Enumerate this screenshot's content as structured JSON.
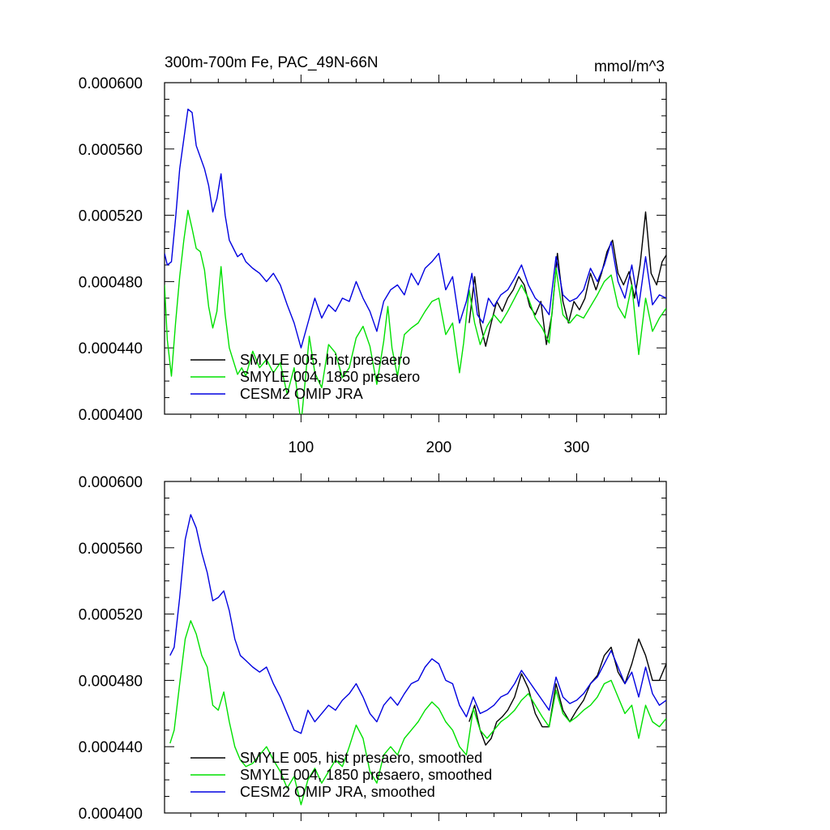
{
  "chart_data": [
    {
      "type": "line",
      "title": "300m-700m Fe, PAC_49N-66N",
      "units": "mmol/m^3",
      "xlim": [
        1,
        365
      ],
      "ylim": [
        0.0004,
        0.0006
      ],
      "x_ticks": [
        100,
        200,
        300
      ],
      "x_tick_labels": [
        "100",
        "200",
        "300"
      ],
      "y_ticks": [
        0.0004,
        0.00044,
        0.00048,
        0.00052,
        0.00056,
        0.0006
      ],
      "y_tick_labels": [
        "0.000400",
        "0.000440",
        "0.000480",
        "0.000520",
        "0.000560",
        "0.000600"
      ],
      "legend_position": "bottom-left",
      "series": [
        {
          "name": "SMYLE 005, hist presaero",
          "color": "#000000",
          "x": [
            222,
            226,
            230,
            234,
            238,
            242,
            246,
            250,
            254,
            258,
            262,
            266,
            270,
            274,
            278,
            282,
            286,
            290,
            294,
            298,
            302,
            306,
            310,
            314,
            318,
            322,
            326,
            330,
            334,
            338,
            342,
            346,
            350,
            354,
            358,
            362,
            365
          ],
          "values": [
            0.000455,
            0.000483,
            0.000455,
            0.000441,
            0.000455,
            0.000468,
            0.000462,
            0.00047,
            0.000475,
            0.000483,
            0.000478,
            0.000465,
            0.00046,
            0.000468,
            0.000442,
            0.00046,
            0.000497,
            0.000468,
            0.000455,
            0.000468,
            0.000463,
            0.00047,
            0.000485,
            0.000475,
            0.000485,
            0.000498,
            0.000505,
            0.000485,
            0.000478,
            0.000486,
            0.00047,
            0.00049,
            0.000522,
            0.000485,
            0.000478,
            0.000492,
            0.000496
          ]
        },
        {
          "name": "SMYLE 004, 1850 presaero",
          "color": "#00e000",
          "x": [
            1,
            3,
            6,
            9,
            12,
            15,
            18,
            21,
            24,
            27,
            30,
            33,
            36,
            39,
            42,
            45,
            48,
            51,
            54,
            57,
            60,
            65,
            70,
            75,
            80,
            85,
            90,
            95,
            100,
            103,
            106,
            110,
            115,
            120,
            125,
            130,
            135,
            140,
            145,
            150,
            155,
            160,
            163,
            166,
            170,
            175,
            180,
            185,
            190,
            195,
            200,
            205,
            210,
            215,
            218,
            222,
            226,
            230,
            235,
            240,
            245,
            250,
            255,
            260,
            265,
            270,
            275,
            280,
            285,
            290,
            295,
            300,
            305,
            310,
            315,
            320,
            325,
            330,
            335,
            340,
            345,
            350,
            355,
            360,
            365
          ],
          "values": [
            0.000478,
            0.000445,
            0.000423,
            0.000455,
            0.000483,
            0.000505,
            0.000523,
            0.000512,
            0.0005,
            0.000498,
            0.000487,
            0.000465,
            0.000452,
            0.000462,
            0.000489,
            0.00046,
            0.00044,
            0.000432,
            0.000424,
            0.000428,
            0.000423,
            0.000438,
            0.000428,
            0.000433,
            0.000425,
            0.000431,
            0.000412,
            0.000428,
            0.000394,
            0.00042,
            0.000447,
            0.000425,
            0.000416,
            0.000442,
            0.000437,
            0.000422,
            0.000428,
            0.000446,
            0.000453,
            0.000441,
            0.000418,
            0.000444,
            0.000465,
            0.00044,
            0.000423,
            0.000448,
            0.000452,
            0.000455,
            0.000462,
            0.000468,
            0.00047,
            0.000448,
            0.000455,
            0.000425,
            0.000443,
            0.000475,
            0.000455,
            0.000442,
            0.000453,
            0.00046,
            0.000455,
            0.000462,
            0.00047,
            0.000478,
            0.00047,
            0.000458,
            0.000452,
            0.000443,
            0.000488,
            0.00046,
            0.000455,
            0.00046,
            0.000458,
            0.000465,
            0.000472,
            0.00048,
            0.000484,
            0.000465,
            0.000458,
            0.000478,
            0.000436,
            0.00047,
            0.00045,
            0.000458,
            0.000464
          ]
        },
        {
          "name": "CESM2 OMIP JRA",
          "color": "#0000e0",
          "x": [
            1,
            3,
            6,
            9,
            12,
            15,
            18,
            21,
            24,
            27,
            30,
            33,
            36,
            39,
            42,
            45,
            48,
            51,
            54,
            57,
            60,
            65,
            70,
            75,
            80,
            85,
            90,
            95,
            100,
            105,
            110,
            115,
            120,
            125,
            130,
            135,
            140,
            145,
            150,
            155,
            160,
            165,
            170,
            175,
            180,
            185,
            190,
            195,
            200,
            205,
            210,
            215,
            220,
            224,
            228,
            232,
            236,
            240,
            245,
            250,
            255,
            260,
            265,
            270,
            275,
            280,
            285,
            290,
            295,
            300,
            305,
            310,
            315,
            320,
            325,
            330,
            335,
            340,
            345,
            350,
            355,
            360,
            365
          ],
          "values": [
            0.000497,
            0.00049,
            0.000492,
            0.000518,
            0.000548,
            0.000566,
            0.000584,
            0.000582,
            0.000562,
            0.000555,
            0.000548,
            0.000538,
            0.000522,
            0.00053,
            0.000545,
            0.00052,
            0.000505,
            0.0005,
            0.000495,
            0.000497,
            0.000492,
            0.000488,
            0.000485,
            0.00048,
            0.000485,
            0.000478,
            0.000466,
            0.000455,
            0.00044,
            0.000455,
            0.00047,
            0.000458,
            0.000466,
            0.000462,
            0.00047,
            0.000468,
            0.00048,
            0.00047,
            0.000462,
            0.00045,
            0.000468,
            0.000475,
            0.000478,
            0.000472,
            0.000485,
            0.000478,
            0.000488,
            0.000492,
            0.000497,
            0.000475,
            0.000483,
            0.000455,
            0.000468,
            0.000485,
            0.00046,
            0.000455,
            0.00047,
            0.000465,
            0.000472,
            0.000475,
            0.000482,
            0.00049,
            0.000478,
            0.00047,
            0.000466,
            0.00046,
            0.000495,
            0.000472,
            0.000468,
            0.00047,
            0.000475,
            0.000488,
            0.00048,
            0.00049,
            0.000504,
            0.00048,
            0.00047,
            0.00049,
            0.000465,
            0.000495,
            0.000466,
            0.000472,
            0.00047
          ]
        }
      ]
    },
    {
      "type": "line",
      "title": "",
      "xlim": [
        1,
        365
      ],
      "ylim": [
        0.0004,
        0.0006
      ],
      "x_ticks": [
        100,
        200,
        300
      ],
      "y_ticks": [
        0.0004,
        0.00044,
        0.00048,
        0.00052,
        0.00056,
        0.0006
      ],
      "y_tick_labels": [
        "0.000400",
        "0.000440",
        "0.000480",
        "0.000520",
        "0.000560",
        "0.000600"
      ],
      "legend_position": "bottom-left",
      "series": [
        {
          "name": "SMYLE 005, hist presaero, smoothed",
          "color": "#000000",
          "x": [
            222,
            226,
            230,
            234,
            238,
            242,
            246,
            250,
            255,
            260,
            265,
            270,
            275,
            280,
            285,
            290,
            295,
            300,
            305,
            310,
            315,
            320,
            325,
            330,
            335,
            340,
            345,
            350,
            355,
            360,
            365
          ],
          "values": [
            0.000455,
            0.000465,
            0.00045,
            0.000441,
            0.000445,
            0.000455,
            0.000458,
            0.000462,
            0.00047,
            0.000484,
            0.000475,
            0.00046,
            0.000452,
            0.000452,
            0.000478,
            0.000462,
            0.000455,
            0.000462,
            0.000468,
            0.000478,
            0.000483,
            0.000495,
            0.0005,
            0.000485,
            0.000478,
            0.00049,
            0.000505,
            0.000495,
            0.00048,
            0.00048,
            0.00049
          ]
        },
        {
          "name": "SMYLE 004, 1850 presaero, smoothed",
          "color": "#00e000",
          "x": [
            5,
            8,
            12,
            16,
            20,
            24,
            28,
            32,
            36,
            40,
            44,
            48,
            52,
            56,
            60,
            65,
            70,
            75,
            80,
            85,
            90,
            95,
            100,
            105,
            110,
            115,
            120,
            125,
            130,
            135,
            140,
            145,
            150,
            155,
            160,
            165,
            170,
            175,
            180,
            185,
            190,
            195,
            200,
            205,
            210,
            215,
            220,
            225,
            230,
            235,
            240,
            245,
            250,
            255,
            260,
            265,
            270,
            275,
            280,
            285,
            290,
            295,
            300,
            305,
            310,
            315,
            320,
            325,
            330,
            335,
            340,
            345,
            350,
            355,
            360,
            365
          ],
          "values": [
            0.000442,
            0.00045,
            0.000478,
            0.000505,
            0.000516,
            0.000508,
            0.000495,
            0.000488,
            0.000465,
            0.000462,
            0.000473,
            0.000455,
            0.00044,
            0.000432,
            0.000428,
            0.00043,
            0.000435,
            0.00044,
            0.000432,
            0.000425,
            0.000415,
            0.000422,
            0.000405,
            0.00042,
            0.000427,
            0.000418,
            0.000425,
            0.000432,
            0.000428,
            0.00044,
            0.000453,
            0.000445,
            0.000425,
            0.000418,
            0.000435,
            0.00044,
            0.000435,
            0.000445,
            0.00045,
            0.000455,
            0.000462,
            0.000467,
            0.000463,
            0.000455,
            0.00045,
            0.00044,
            0.000435,
            0.000463,
            0.00045,
            0.000445,
            0.00045,
            0.000455,
            0.000458,
            0.000462,
            0.000468,
            0.000472,
            0.000465,
            0.000458,
            0.000452,
            0.000474,
            0.00046,
            0.000455,
            0.000458,
            0.000462,
            0.000465,
            0.00047,
            0.000478,
            0.00048,
            0.00047,
            0.00046,
            0.000465,
            0.000445,
            0.000465,
            0.000455,
            0.000452,
            0.000457
          ]
        },
        {
          "name": "CESM2 OMIP JRA, smoothed",
          "color": "#0000e0",
          "x": [
            5,
            8,
            12,
            16,
            20,
            24,
            28,
            32,
            36,
            40,
            44,
            48,
            52,
            56,
            60,
            65,
            70,
            75,
            80,
            85,
            90,
            95,
            100,
            105,
            110,
            115,
            120,
            125,
            130,
            135,
            140,
            145,
            150,
            155,
            160,
            165,
            170,
            175,
            180,
            185,
            190,
            195,
            200,
            205,
            210,
            215,
            220,
            225,
            230,
            235,
            240,
            245,
            250,
            255,
            260,
            265,
            270,
            275,
            280,
            285,
            290,
            295,
            300,
            305,
            310,
            315,
            320,
            325,
            330,
            335,
            340,
            345,
            350,
            355,
            360,
            365
          ],
          "values": [
            0.000495,
            0.0005,
            0.00053,
            0.000565,
            0.00058,
            0.000572,
            0.000557,
            0.000545,
            0.000528,
            0.00053,
            0.000534,
            0.000522,
            0.000505,
            0.000495,
            0.000492,
            0.000488,
            0.000485,
            0.000488,
            0.000478,
            0.00047,
            0.00046,
            0.00045,
            0.000448,
            0.000462,
            0.000455,
            0.00046,
            0.000465,
            0.000462,
            0.000468,
            0.000472,
            0.000478,
            0.00047,
            0.00046,
            0.000455,
            0.000465,
            0.00047,
            0.000465,
            0.000472,
            0.000478,
            0.00048,
            0.000488,
            0.000493,
            0.00049,
            0.00048,
            0.000478,
            0.000465,
            0.000458,
            0.00047,
            0.00046,
            0.000462,
            0.000465,
            0.00047,
            0.000472,
            0.000478,
            0.000486,
            0.00048,
            0.000474,
            0.000468,
            0.000462,
            0.000482,
            0.00047,
            0.000466,
            0.000468,
            0.000472,
            0.000478,
            0.000482,
            0.00049,
            0.000498,
            0.000488,
            0.000478,
            0.000485,
            0.00047,
            0.000488,
            0.000472,
            0.000465,
            0.000468
          ]
        }
      ]
    }
  ]
}
